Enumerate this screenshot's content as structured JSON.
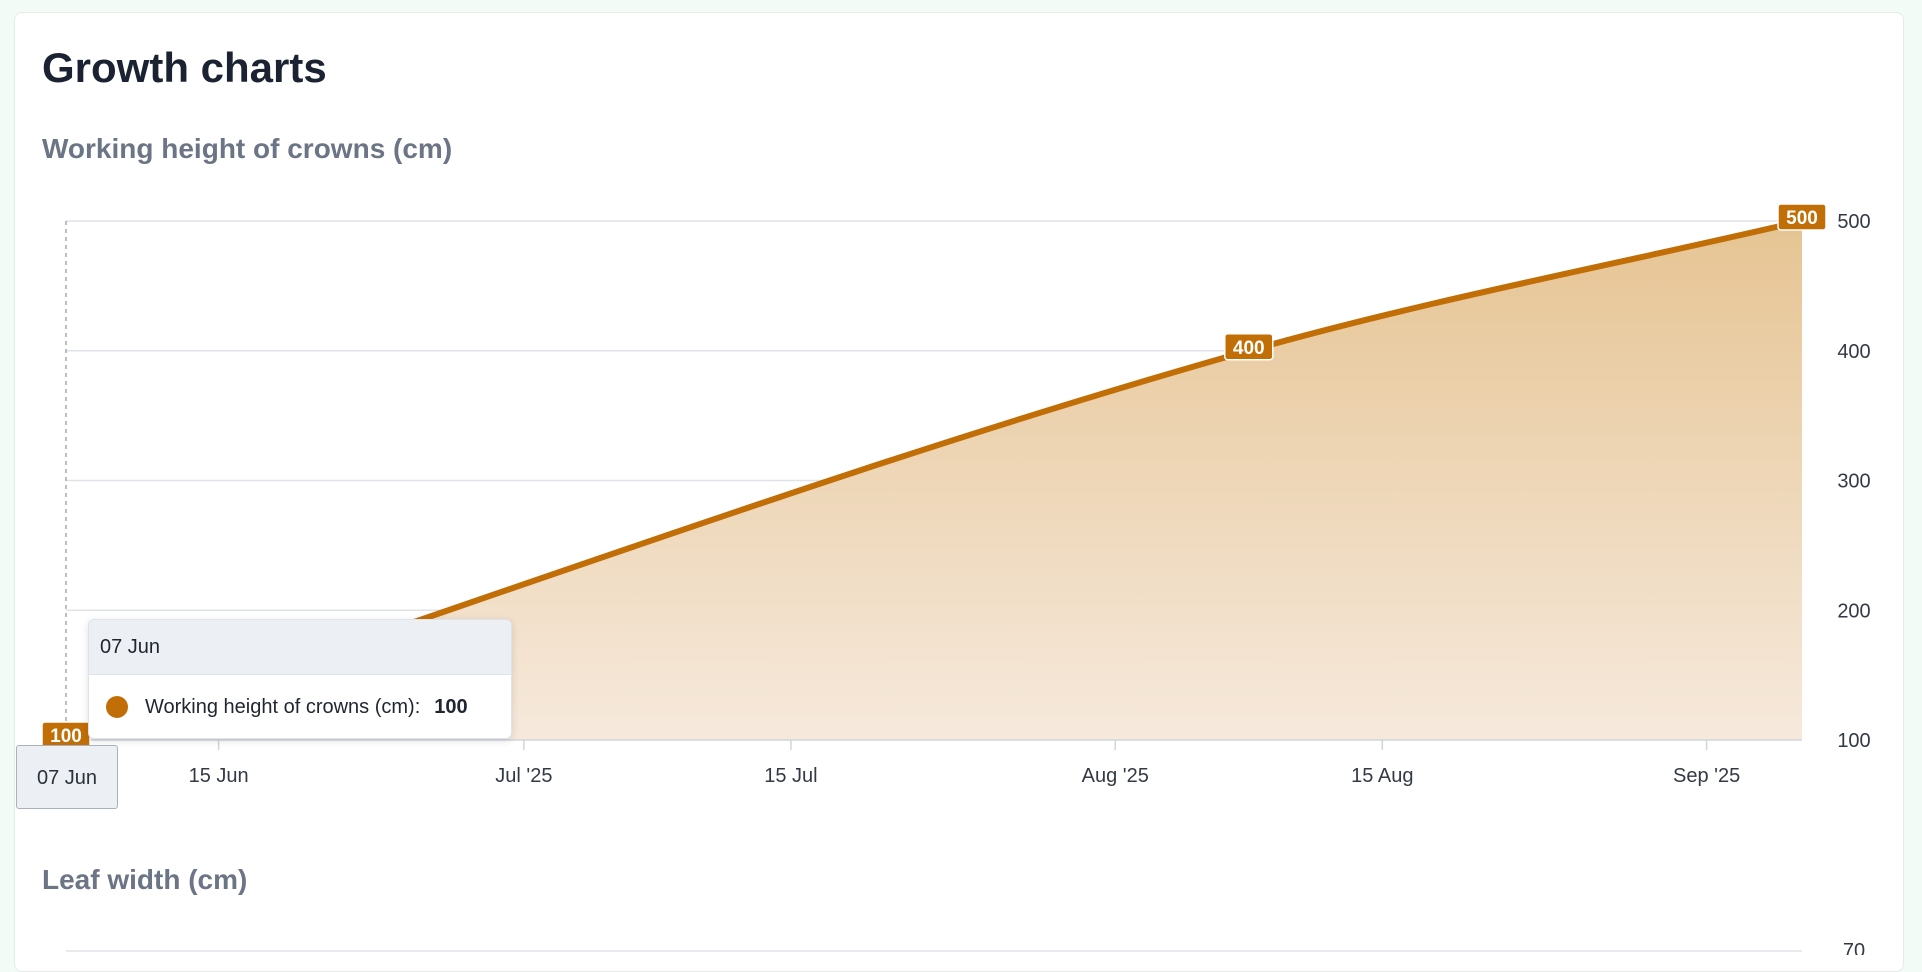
{
  "page": {
    "title": "Growth charts"
  },
  "charts": [
    {
      "title": "Working height of crowns (cm)"
    },
    {
      "title": "Leaf width (cm)"
    }
  ],
  "colors": {
    "series": "#c26e06",
    "area_top": "#e6c493",
    "area_bottom": "#f6e9dc",
    "grid": "#dfe3e8"
  },
  "tooltip": {
    "date": "07 Jun",
    "series_label": "Working height of crowns (cm):",
    "value": "100"
  },
  "crosshair_label": "07 Jun",
  "chart_data": [
    {
      "type": "area",
      "title": "Working height of crowns (cm)",
      "x_type": "date",
      "y_axis_position": "right",
      "ylim": [
        100,
        500
      ],
      "y_ticks": [
        100,
        200,
        300,
        400,
        500
      ],
      "x_ticks": [
        {
          "date": "2025-06-15",
          "label": "15 Jun"
        },
        {
          "date": "2025-07-01",
          "label": "Jul '25"
        },
        {
          "date": "2025-07-15",
          "label": "15 Jul"
        },
        {
          "date": "2025-08-01",
          "label": "Aug '25"
        },
        {
          "date": "2025-08-15",
          "label": "15 Aug"
        },
        {
          "date": "2025-09-01",
          "label": "Sep '25"
        }
      ],
      "xlim": [
        "2025-06-07",
        "2025-09-06"
      ],
      "series": [
        {
          "name": "Working height of crowns (cm)",
          "points": [
            {
              "x": "2025-06-07",
              "y": 100
            },
            {
              "x": "2025-08-08",
              "y": 400
            },
            {
              "x": "2025-09-06",
              "y": 500
            }
          ]
        }
      ],
      "data_labels": [
        "100",
        "400",
        "500"
      ],
      "grid": true,
      "legend": "none"
    },
    {
      "type": "area",
      "title": "Leaf width (cm)",
      "visible_y_ticks": [
        70
      ]
    }
  ]
}
